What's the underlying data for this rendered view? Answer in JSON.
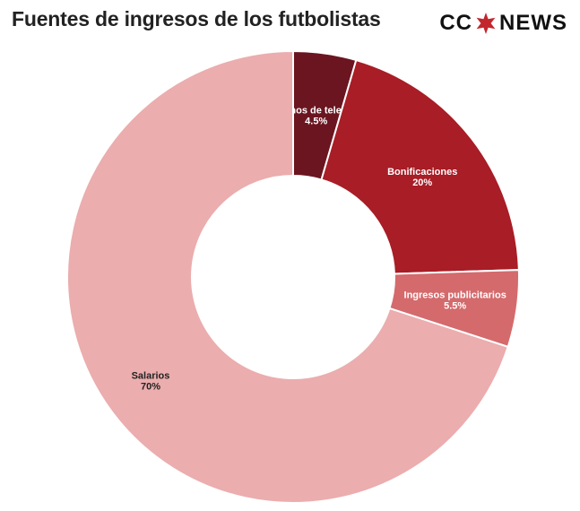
{
  "header": {
    "title": "Fuentes de ingresos de los futbolistas",
    "logo_left": "CC",
    "logo_right": "NEWS",
    "logo_star_color": "#c1272d",
    "logo_star_icon": "star-icon"
  },
  "chart_data": {
    "type": "pie",
    "donut": true,
    "title": "Fuentes de ingresos de los futbolistas",
    "slices": [
      {
        "label": "Derechos de televisión",
        "value": 4.5,
        "value_label": "4.5%",
        "color": "#6b1520",
        "text_color": "#ffffff"
      },
      {
        "label": "Bonificaciones",
        "value": 20,
        "value_label": "20%",
        "color": "#a81d26",
        "text_color": "#ffffff"
      },
      {
        "label": "Ingresos publicitarios",
        "value": 5.5,
        "value_label": "5.5%",
        "color": "#d46a6c",
        "text_color": "#ffffff"
      },
      {
        "label": "Salarios",
        "value": 70,
        "value_label": "70%",
        "color": "#ebadae",
        "text_color": "#222222"
      }
    ]
  }
}
